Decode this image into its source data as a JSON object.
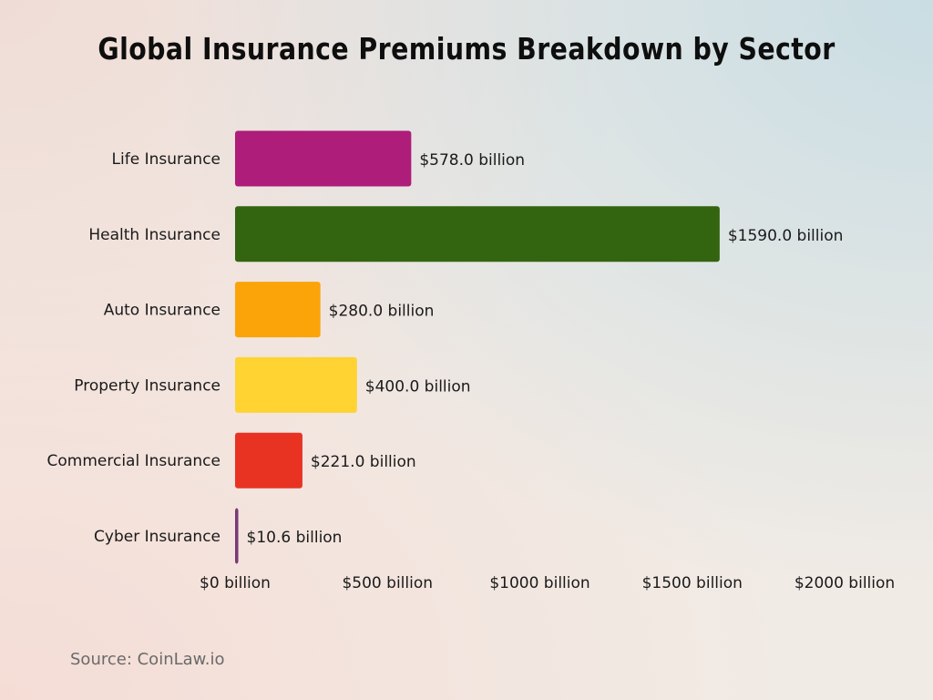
{
  "chart_data": {
    "type": "bar",
    "orientation": "horizontal",
    "title": "Global Insurance Premiums Breakdown by Sector",
    "categories": [
      "Life Insurance",
      "Health Insurance",
      "Auto Insurance",
      "Property Insurance",
      "Commercial Insurance",
      "Cyber Insurance"
    ],
    "values": [
      578.0,
      1590.0,
      280.0,
      400.0,
      221.0,
      10.6
    ],
    "data_labels": [
      "$578.0 billion",
      "$1590.0 billion",
      "$280.0 billion",
      "$400.0 billion",
      "$221.0 billion",
      "$10.6 billion"
    ],
    "colors": [
      "#ad1d79",
      "#336410",
      "#fba40a",
      "#fed332",
      "#e83323",
      "#7a3a78"
    ],
    "xlim": [
      0,
      2000
    ],
    "x_ticks": [
      0,
      500,
      1000,
      1500,
      2000
    ],
    "x_tick_labels": [
      "$0 billion",
      "$500 billion",
      "$1000 billion",
      "$1500 billion",
      "$2000 billion"
    ],
    "xlabel": "",
    "ylabel": "",
    "grid": false,
    "legend": "none"
  },
  "source": "Source: CoinLaw.io"
}
